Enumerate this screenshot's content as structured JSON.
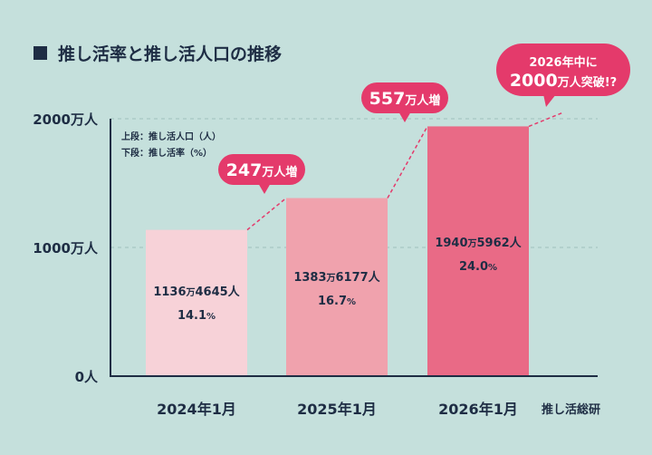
{
  "title": "推し活率と推し活人口の推移",
  "legend": {
    "upper": "上段：推し活人口（人）",
    "lower": "下段：推し活率（%）"
  },
  "source": "推し活総研",
  "colors": {
    "background": "#c5e0dc",
    "axis": "#1e2d44",
    "title_square": "#1e2d44",
    "bar_2024": "#f7d2d8",
    "bar_2025": "#f0a2ad",
    "bar_2026": "#e96a86",
    "callout": "#e43a6b",
    "dashed": "#e43a6b",
    "gridline": "#9fbfbc"
  },
  "chart_data": {
    "type": "bar",
    "categories": [
      "2024年1月",
      "2025年1月",
      "2026年1月"
    ],
    "values": [
      11364645,
      13836177,
      19405962
    ],
    "ylim": [
      0,
      20000000
    ],
    "yticks": [
      {
        "value": 0,
        "label": "0人"
      },
      {
        "value": 10000000,
        "label": "1000万人"
      },
      {
        "value": 20000000,
        "label": "2000万人"
      }
    ],
    "value_labels": [
      {
        "man": "1136",
        "unit": "万",
        "rest": "4645人",
        "rate": "14.1",
        "pct": "%"
      },
      {
        "man": "1383",
        "unit": "万",
        "rest": "6177人",
        "rate": "16.7",
        "pct": "%"
      },
      {
        "man": "1940",
        "unit": "万",
        "rest": "5962人",
        "rate": "24.0",
        "pct": "%"
      }
    ],
    "rates": [
      14.1,
      16.7,
      24.0
    ],
    "increase_callouts": [
      {
        "num": "247",
        "text": "万人増"
      },
      {
        "num": "557",
        "text": "万人増"
      }
    ],
    "projection": {
      "line1": "2026年中に",
      "num": "2000",
      "text": "万人突破!?"
    },
    "grid": "dashed at 1000万人 and 2000万人"
  }
}
